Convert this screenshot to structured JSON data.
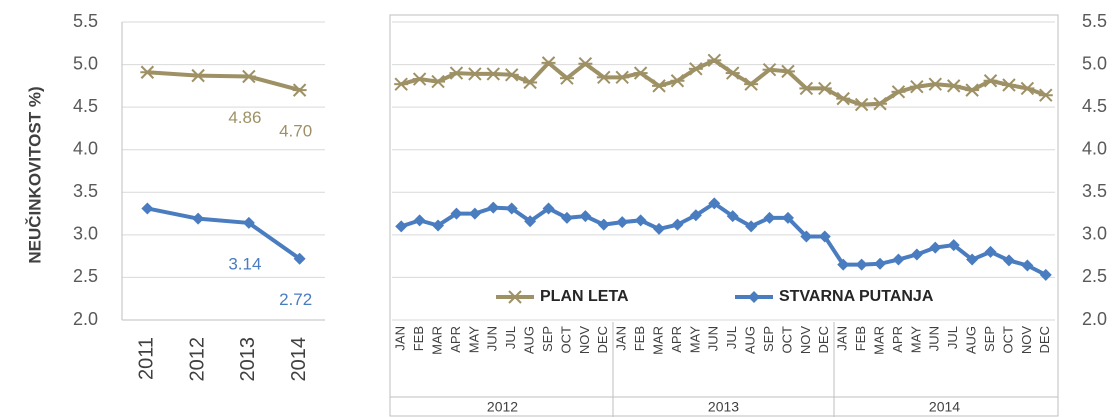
{
  "chart_data": [
    {
      "type": "line",
      "y_label": "NEUČINKOVITOST %)",
      "categories": [
        "2011",
        "2012",
        "2013",
        "2014"
      ],
      "ylim": [
        2,
        5.5
      ],
      "yticks": [
        {
          "value": 2,
          "label": "2.0"
        },
        2.5,
        {
          "value": 3,
          "label": "3.0"
        },
        3.5,
        {
          "value": 4,
          "label": "4.0"
        },
        4.5,
        {
          "value": 5,
          "label": "5.0"
        },
        5.5
      ],
      "grid": true,
      "y_axis_side": "left",
      "series": [
        {
          "name": "PLAN LETA",
          "color": "#9e9165",
          "marker": "star",
          "values": [
            4.91,
            4.87,
            4.86,
            4.7
          ],
          "value_labels": [
            null,
            null,
            "4.86",
            "4.70"
          ]
        },
        {
          "name": "STVARNA PUTANJA",
          "color": "#4a7cc0",
          "marker": "diamond",
          "values": [
            3.31,
            3.19,
            3.14,
            2.72
          ],
          "value_labels": [
            null,
            null,
            "3.14",
            "2.72"
          ]
        }
      ]
    },
    {
      "type": "line",
      "categories": [
        "JAN",
        "FEB",
        "MAR",
        "APR",
        "MAY",
        "JUN",
        "JUL",
        "AUG",
        "SEP",
        "OCT",
        "NOV",
        "DEC",
        "JAN",
        "FEB",
        "MAR",
        "APR",
        "MAY",
        "JUN",
        "JUL",
        "AUG",
        "SEP",
        "OCT",
        "NOV",
        "DEC",
        "JAN",
        "FEB",
        "MAR",
        "APR",
        "MAY",
        "JUN",
        "JUL",
        "AUG",
        "SEP",
        "OCT",
        "NOV",
        "DEC"
      ],
      "groups": [
        "2012",
        "2013",
        "2014"
      ],
      "ylim": [
        2,
        5.5
      ],
      "yticks": [
        {
          "value": 2,
          "label": "2.0"
        },
        2.5,
        {
          "value": 3,
          "label": "3.0"
        },
        3.5,
        {
          "value": 4,
          "label": "4.0"
        },
        4.5,
        {
          "value": 5,
          "label": "5.0"
        },
        5.5
      ],
      "grid": true,
      "y_axis_side": "right",
      "legend": "bottom",
      "series": [
        {
          "name": "PLAN LETA",
          "color": "#9e9165",
          "marker": "star",
          "values": [
            4.77,
            4.83,
            4.8,
            4.9,
            4.89,
            4.89,
            4.88,
            4.79,
            5.02,
            4.84,
            5.01,
            4.85,
            4.85,
            4.9,
            4.75,
            4.81,
            4.95,
            5.05,
            4.9,
            4.77,
            4.94,
            4.92,
            4.72,
            4.72,
            4.6,
            4.53,
            4.54,
            4.68,
            4.74,
            4.77,
            4.75,
            4.7,
            4.81,
            4.76,
            4.72,
            4.64
          ]
        },
        {
          "name": "STVARNA PUTANJA",
          "color": "#4a7cc0",
          "marker": "diamond",
          "values": [
            3.1,
            3.17,
            3.11,
            3.25,
            3.25,
            3.32,
            3.31,
            3.16,
            3.31,
            3.2,
            3.22,
            3.12,
            3.15,
            3.17,
            3.07,
            3.12,
            3.23,
            3.37,
            3.22,
            3.1,
            3.2,
            3.2,
            2.98,
            2.98,
            2.65,
            2.65,
            2.66,
            2.71,
            2.77,
            2.85,
            2.88,
            2.71,
            2.8,
            2.7,
            2.64,
            2.53
          ]
        }
      ]
    }
  ]
}
